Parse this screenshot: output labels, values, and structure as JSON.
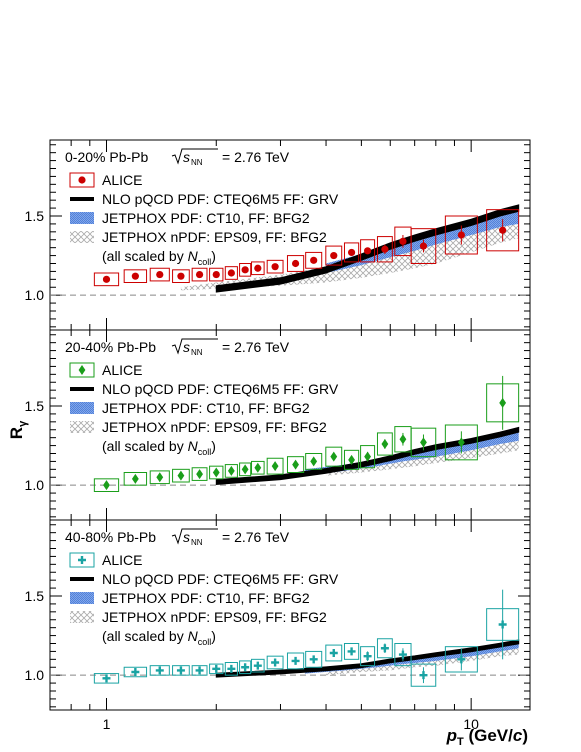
{
  "chart_data": {
    "type": "scatter",
    "xscale": "log",
    "xlim": [
      0.7,
      14.5
    ],
    "ylim": [
      0.78,
      1.98
    ],
    "xlabel": {
      "p": "p",
      "sub": "T",
      "unit_open": " (GeV/",
      "unit_c": "c",
      "unit_close": ")"
    },
    "ylabel": {
      "r": "R",
      "sub": "γ"
    },
    "x_ticklabels": [
      {
        "x": 1,
        "label": "1"
      },
      {
        "x": 10,
        "label": "10"
      }
    ],
    "y_ticks": [
      {
        "y": 1.0,
        "label": "1.0"
      },
      {
        "y": 1.5,
        "label": "1.5"
      }
    ],
    "reference_line": 1.0,
    "legend_entries": {
      "alice": "ALICE",
      "nlo": "NLO pQCD PDF: CTEQ6M5 FF: GRV",
      "jetphox": "JETPHOX PDF: CT10, FF: BFG2",
      "jetphox_npdf": "JETPHOX nPDF: EPS09, FF: BFG2",
      "scaled_prefix": "(all scaled by ",
      "scaled_n": "N",
      "scaled_sub": "coll",
      "scaled_suffix": ")"
    },
    "colors": {
      "panel1": "#cc0000",
      "panel2": "#1a9e1a",
      "panel3": "#1aa3a3",
      "nlo": "#000000",
      "jetphox": "#4d84e0",
      "jetphox_npdf": "#b0b0b0",
      "dashed": "#888888"
    },
    "panels": [
      {
        "centrality": "0-20% Pb-Pb",
        "energy_label": "= 2.76 TeV",
        "marker": "circle",
        "x": [
          1.0,
          1.2,
          1.4,
          1.6,
          1.8,
          2.0,
          2.2,
          2.4,
          2.6,
          2.9,
          3.3,
          3.7,
          4.2,
          4.7,
          5.2,
          5.8,
          6.5,
          7.4,
          9.4,
          12.2
        ],
        "y": [
          1.1,
          1.12,
          1.13,
          1.12,
          1.13,
          1.13,
          1.14,
          1.16,
          1.17,
          1.18,
          1.2,
          1.22,
          1.25,
          1.27,
          1.28,
          1.29,
          1.34,
          1.31,
          1.38,
          1.41
        ],
        "stat_err": [
          0.01,
          0.01,
          0.01,
          0.01,
          0.01,
          0.01,
          0.01,
          0.01,
          0.01,
          0.01,
          0.01,
          0.01,
          0.02,
          0.02,
          0.02,
          0.03,
          0.04,
          0.04,
          0.06,
          0.07
        ],
        "sys_err": [
          0.04,
          0.04,
          0.04,
          0.04,
          0.04,
          0.04,
          0.04,
          0.04,
          0.04,
          0.04,
          0.05,
          0.05,
          0.06,
          0.06,
          0.07,
          0.08,
          0.09,
          0.11,
          0.12,
          0.13
        ],
        "nlo": {
          "x": [
            2.0,
            3.0,
            4.0,
            5.0,
            6.0,
            7.0,
            8.0,
            10.0,
            12.0,
            13.5
          ],
          "y": [
            1.04,
            1.09,
            1.16,
            1.24,
            1.31,
            1.36,
            1.4,
            1.46,
            1.52,
            1.55
          ],
          "halfwidth": 0.02
        },
        "jetphox": {
          "x": [
            4.0,
            5.0,
            6.0,
            7.0,
            8.0,
            10.0,
            12.0,
            13.5
          ],
          "lo": [
            1.14,
            1.19,
            1.24,
            1.28,
            1.32,
            1.38,
            1.43,
            1.45
          ],
          "hi": [
            1.2,
            1.26,
            1.31,
            1.36,
            1.4,
            1.46,
            1.52,
            1.55
          ]
        },
        "jetphox_npdf": {
          "x": [
            1.6,
            2.0,
            3.0,
            4.0,
            5.0,
            6.0,
            7.0,
            8.0,
            10.0,
            12.0,
            13.5
          ],
          "lo": [
            1.03,
            1.04,
            1.06,
            1.08,
            1.11,
            1.14,
            1.17,
            1.2,
            1.27,
            1.33,
            1.36
          ],
          "hi": [
            1.05,
            1.08,
            1.13,
            1.18,
            1.23,
            1.27,
            1.31,
            1.35,
            1.42,
            1.48,
            1.51
          ]
        }
      },
      {
        "centrality": "20-40% Pb-Pb",
        "energy_label": "= 2.76 TeV",
        "marker": "diamond",
        "x": [
          1.0,
          1.2,
          1.4,
          1.6,
          1.8,
          2.0,
          2.2,
          2.4,
          2.6,
          2.9,
          3.3,
          3.7,
          4.2,
          4.7,
          5.2,
          5.8,
          6.5,
          7.4,
          9.4,
          12.2
        ],
        "y": [
          1.0,
          1.04,
          1.05,
          1.06,
          1.07,
          1.08,
          1.09,
          1.1,
          1.11,
          1.12,
          1.13,
          1.15,
          1.18,
          1.16,
          1.18,
          1.26,
          1.29,
          1.27,
          1.27,
          1.52
        ],
        "stat_err": [
          0.01,
          0.01,
          0.01,
          0.01,
          0.01,
          0.01,
          0.01,
          0.01,
          0.01,
          0.01,
          0.02,
          0.02,
          0.02,
          0.02,
          0.03,
          0.03,
          0.04,
          0.05,
          0.07,
          0.17
        ],
        "sys_err": [
          0.04,
          0.04,
          0.04,
          0.04,
          0.04,
          0.04,
          0.04,
          0.04,
          0.04,
          0.05,
          0.05,
          0.05,
          0.06,
          0.06,
          0.07,
          0.07,
          0.08,
          0.09,
          0.11,
          0.12
        ],
        "nlo": {
          "x": [
            2.0,
            3.0,
            4.0,
            5.0,
            6.0,
            7.0,
            8.0,
            10.0,
            12.0,
            13.5
          ],
          "y": [
            1.02,
            1.05,
            1.09,
            1.13,
            1.17,
            1.21,
            1.24,
            1.28,
            1.32,
            1.35
          ],
          "halfwidth": 0.015
        },
        "jetphox": {
          "x": [
            3.5,
            4.5,
            5.5,
            6.5,
            8.0,
            10.0,
            12.0,
            13.5
          ],
          "lo": [
            1.06,
            1.09,
            1.12,
            1.15,
            1.18,
            1.22,
            1.26,
            1.28
          ],
          "hi": [
            1.1,
            1.13,
            1.16,
            1.19,
            1.23,
            1.27,
            1.31,
            1.34
          ]
        },
        "jetphox_npdf": {
          "x": [
            4.0,
            5.0,
            6.0,
            7.0,
            8.0,
            10.0,
            12.0,
            13.5
          ],
          "lo": [
            1.06,
            1.08,
            1.1,
            1.12,
            1.14,
            1.17,
            1.2,
            1.22
          ],
          "hi": [
            1.1,
            1.13,
            1.16,
            1.18,
            1.21,
            1.24,
            1.28,
            1.3
          ]
        }
      },
      {
        "centrality": "40-80% Pb-Pb",
        "energy_label": "= 2.76 TeV",
        "marker": "cross",
        "x": [
          1.0,
          1.2,
          1.4,
          1.6,
          1.8,
          2.0,
          2.2,
          2.4,
          2.6,
          2.9,
          3.3,
          3.7,
          4.2,
          4.7,
          5.2,
          5.8,
          6.5,
          7.4,
          9.4,
          12.2
        ],
        "y": [
          0.98,
          1.02,
          1.03,
          1.03,
          1.03,
          1.04,
          1.04,
          1.05,
          1.06,
          1.08,
          1.09,
          1.1,
          1.14,
          1.15,
          1.12,
          1.17,
          1.13,
          1.0,
          1.1,
          1.32
        ],
        "stat_err": [
          0.01,
          0.01,
          0.01,
          0.01,
          0.01,
          0.01,
          0.01,
          0.01,
          0.01,
          0.01,
          0.02,
          0.02,
          0.02,
          0.02,
          0.03,
          0.03,
          0.04,
          0.05,
          0.07,
          0.22
        ],
        "sys_err": [
          0.03,
          0.03,
          0.03,
          0.03,
          0.03,
          0.03,
          0.04,
          0.04,
          0.04,
          0.04,
          0.05,
          0.05,
          0.05,
          0.05,
          0.06,
          0.06,
          0.07,
          0.07,
          0.08,
          0.1
        ],
        "nlo": {
          "x": [
            2.0,
            3.0,
            4.0,
            5.0,
            6.0,
            7.0,
            8.0,
            10.0,
            12.0,
            13.5
          ],
          "y": [
            1.0,
            1.02,
            1.04,
            1.06,
            1.09,
            1.11,
            1.13,
            1.16,
            1.19,
            1.21
          ],
          "halfwidth": 0.012
        },
        "jetphox": {
          "x": [
            3.5,
            4.5,
            5.5,
            6.5,
            8.0,
            10.0,
            12.0,
            13.5
          ],
          "lo": [
            1.01,
            1.03,
            1.05,
            1.07,
            1.09,
            1.12,
            1.15,
            1.17
          ],
          "hi": [
            1.04,
            1.06,
            1.08,
            1.1,
            1.13,
            1.16,
            1.19,
            1.21
          ]
        },
        "jetphox_npdf": {
          "x": [
            4.0,
            5.0,
            6.0,
            7.0,
            8.0,
            10.0,
            12.0,
            13.5
          ],
          "lo": [
            1.0,
            1.02,
            1.03,
            1.05,
            1.06,
            1.09,
            1.12,
            1.13
          ],
          "hi": [
            1.03,
            1.05,
            1.07,
            1.09,
            1.11,
            1.14,
            1.17,
            1.19
          ]
        }
      }
    ]
  }
}
